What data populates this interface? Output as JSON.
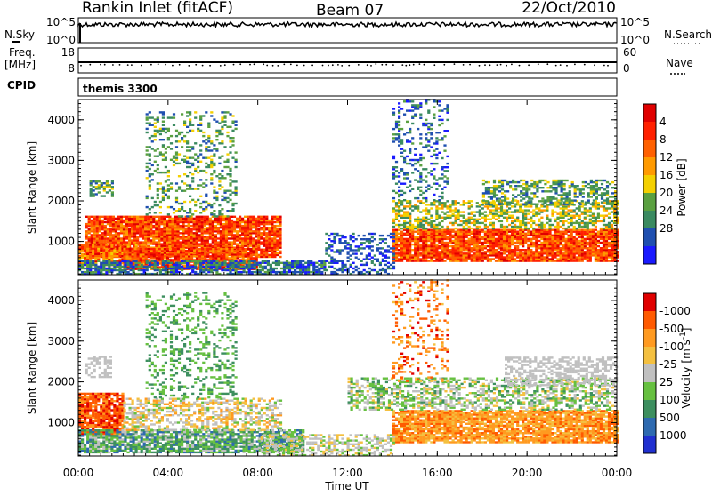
{
  "header": {
    "station": "Rankin Inlet (fitACF)",
    "beam": "Beam 07",
    "date": "22/Oct/2010"
  },
  "strips": {
    "nsky_label": "N.Sky",
    "nsky_ticks": [
      "10^5",
      "10^0"
    ],
    "nsearch_label": "N.Search",
    "nsearch_ticks": [
      "10^5",
      "10^0"
    ],
    "freq_label_1": "Freq.",
    "freq_label_2": "[MHz]",
    "freq_ticks": [
      "18",
      "8"
    ],
    "nave_label": "Nave",
    "nave_ticks": [
      "60",
      "0"
    ],
    "cpid_label": "CPID",
    "cpid_value": "themis 3300"
  },
  "colors": {
    "power": [
      "#1a1aff",
      "#1f4fb0",
      "#3a8a60",
      "#5aa040",
      "#f4d000",
      "#ff9a00",
      "#ff6000",
      "#ff2000",
      "#e00000"
    ],
    "velocity": [
      "#2030d0",
      "#2e6ab0",
      "#3d8f5f",
      "#66c040",
      "#c0c0c0",
      "#f4c040",
      "#ff9a20",
      "#ff5a00",
      "#e00000"
    ]
  },
  "chart_data": [
    {
      "type": "heatmap",
      "name": "power",
      "xlabel": "",
      "ylabel": "Slant Range [km]",
      "ylim": [
        180,
        4500
      ],
      "xlim": [
        "00:00",
        "24:00"
      ],
      "yticks": [
        "1000",
        "2000",
        "3000",
        "4000"
      ],
      "colorbar_label": "Power [dB]",
      "colorbar_ticks": [
        "4",
        "8",
        "12",
        "16",
        "20",
        "24",
        "28"
      ]
    },
    {
      "type": "heatmap",
      "name": "velocity",
      "xlabel": "Time UT",
      "ylabel": "Slant Range [km]",
      "ylim": [
        180,
        4500
      ],
      "xlim": [
        "00:00",
        "24:00"
      ],
      "xticks": [
        "00:00",
        "04:00",
        "08:00",
        "12:00",
        "16:00",
        "20:00",
        "00:00"
      ],
      "yticks": [
        "1000",
        "2000",
        "3000",
        "4000"
      ],
      "colorbar_label": "Velocity [m s^-1]",
      "colorbar_ticks": [
        "1000",
        "500",
        "100",
        "25",
        "-25",
        "-100",
        "-500",
        "-1000"
      ]
    }
  ]
}
